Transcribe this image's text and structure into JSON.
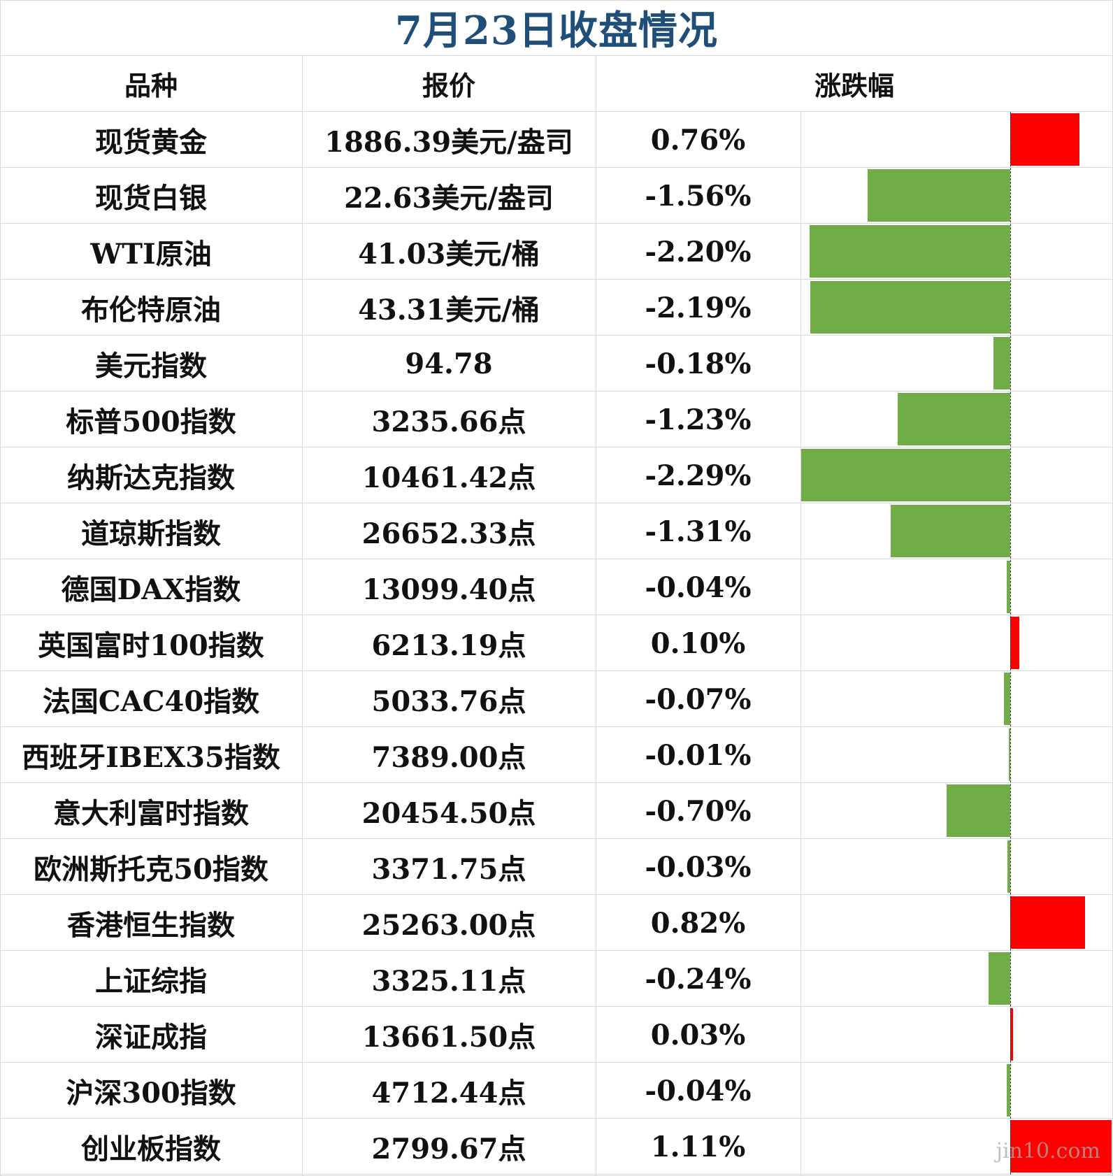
{
  "title": "7月23日收盘情况",
  "headers": {
    "name": "品种",
    "price": "报价",
    "change": "涨跌幅"
  },
  "watermark": "jin10.com",
  "colors": {
    "up": "#ff0000",
    "down": "#70ad47",
    "title": "#1f4e79"
  },
  "chart_data": {
    "type": "bar",
    "orientation": "horizontal",
    "title": "7月23日收盘情况",
    "categories": [
      "现货黄金",
      "现货白银",
      "WTI原油",
      "布伦特原油",
      "美元指数",
      "标普500指数",
      "纳斯达克指数",
      "道琼斯指数",
      "德国DAX指数",
      "英国富时100指数",
      "法国CAC40指数",
      "西班牙IBEX35指数",
      "意大利富时指数",
      "欧洲斯托克50指数",
      "香港恒生指数",
      "上证综指",
      "深证成指",
      "沪深300指数",
      "创业板指数"
    ],
    "values": [
      0.76,
      -1.56,
      -2.2,
      -2.19,
      -0.18,
      -1.23,
      -2.29,
      -1.31,
      -0.04,
      0.1,
      -0.07,
      -0.01,
      -0.7,
      -0.03,
      0.82,
      -0.24,
      0.03,
      -0.04,
      1.11
    ],
    "value_unit": "%",
    "xlim": [
      -2.29,
      1.11
    ]
  },
  "rows": [
    {
      "name": "现货黄金",
      "price": "1886.39美元/盎司",
      "pct": "0.76%"
    },
    {
      "name": "现货白银",
      "price": "22.63美元/盎司",
      "pct": "-1.56%"
    },
    {
      "name": "WTI原油",
      "price": "41.03美元/桶",
      "pct": "-2.20%"
    },
    {
      "name": "布伦特原油",
      "price": "43.31美元/桶",
      "pct": "-2.19%"
    },
    {
      "name": "美元指数",
      "price": "94.78",
      "pct": "-0.18%"
    },
    {
      "name": "标普500指数",
      "price": "3235.66点",
      "pct": "-1.23%"
    },
    {
      "name": "纳斯达克指数",
      "price": "10461.42点",
      "pct": "-2.29%"
    },
    {
      "name": "道琼斯指数",
      "price": "26652.33点",
      "pct": "-1.31%"
    },
    {
      "name": "德国DAX指数",
      "price": "13099.40点",
      "pct": "-0.04%"
    },
    {
      "name": "英国富时100指数",
      "price": "6213.19点",
      "pct": "0.10%"
    },
    {
      "name": "法国CAC40指数",
      "price": "5033.76点",
      "pct": "-0.07%"
    },
    {
      "name": "西班牙IBEX35指数",
      "price": "7389.00点",
      "pct": "-0.01%"
    },
    {
      "name": "意大利富时指数",
      "price": "20454.50点",
      "pct": "-0.70%"
    },
    {
      "name": "欧洲斯托克50指数",
      "price": "3371.75点",
      "pct": "-0.03%"
    },
    {
      "name": "香港恒生指数",
      "price": "25263.00点",
      "pct": "0.82%"
    },
    {
      "name": "上证综指",
      "price": "3325.11点",
      "pct": "-0.24%"
    },
    {
      "name": "深证成指",
      "price": "13661.50点",
      "pct": "0.03%"
    },
    {
      "name": "沪深300指数",
      "price": "4712.44点",
      "pct": "-0.04%"
    },
    {
      "name": "创业板指数",
      "price": "2799.67点",
      "pct": "1.11%"
    }
  ]
}
